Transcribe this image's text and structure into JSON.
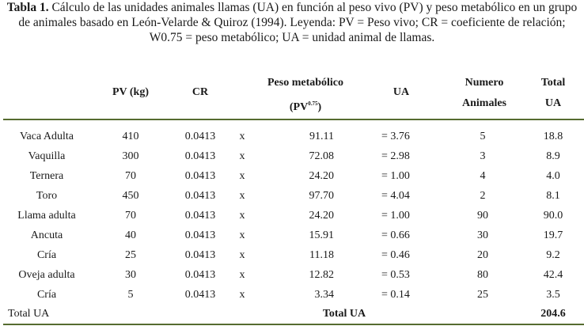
{
  "caption": {
    "label": "Tabla 1.",
    "text": " Cálculo de las unidades animales llamas (UA) en función al peso vivo (PV) y peso metabólico en un grupo de animales basado en León-Velarde & Quiroz (1994). Leyenda: PV = Peso vivo; CR = coeficiente de relación; W0.75 = peso metabólico; UA = unidad animal de llamas."
  },
  "headers": {
    "pv": "PV (kg)",
    "cr": "CR",
    "pm_line1": "Peso metabólico",
    "pm_line2_base": "(PV",
    "pm_line2_exp": "0.75",
    "pm_line2_end": ")",
    "ua": "UA",
    "num_line1": "Numero",
    "num_line2": "Animales",
    "tot_line1": "Total",
    "tot_line2": "UA"
  },
  "rows": [
    {
      "name": "Vaca Adulta",
      "pv": "410",
      "cr": "0.0413",
      "x": "x",
      "pm": "91.11",
      "ua": "= 3.76",
      "num": "5",
      "tot": "18.8"
    },
    {
      "name": "Vaquilla",
      "pv": "300",
      "cr": "0.0413",
      "x": "x",
      "pm": "72.08",
      "ua": "= 2.98",
      "num": "3",
      "tot": "8.9"
    },
    {
      "name": "Ternera",
      "pv": "70",
      "cr": "0.0413",
      "x": "x",
      "pm": "24.20",
      "ua": "= 1.00",
      "num": "4",
      "tot": "4.0"
    },
    {
      "name": "Toro",
      "pv": "450",
      "cr": "0.0413",
      "x": "x",
      "pm": "97.70",
      "ua": "= 4.04",
      "num": "2",
      "tot": "8.1"
    },
    {
      "name": "Llama adulta",
      "pv": "70",
      "cr": "0.0413",
      "x": "x",
      "pm": "24.20",
      "ua": "= 1.00",
      "num": "90",
      "tot": "90.0"
    },
    {
      "name": "Ancuta",
      "pv": "40",
      "cr": "0.0413",
      "x": "x",
      "pm": "15.91",
      "ua": "= 0.66",
      "num": "30",
      "tot": "19.7"
    },
    {
      "name": "Cría",
      "pv": "25",
      "cr": "0.0413",
      "x": "x",
      "pm": "11.18",
      "ua": "= 0.46",
      "num": "20",
      "tot": "9.2"
    },
    {
      "name": "Oveja adulta",
      "pv": "30",
      "cr": "0.0413",
      "x": "x",
      "pm": "12.82",
      "ua": "= 0.53",
      "num": "80",
      "tot": "42.4"
    },
    {
      "name": "Cría",
      "pv": "5",
      "cr": "0.0413",
      "x": "x",
      "pm": "3.34",
      "ua": "= 0.14",
      "num": "25",
      "tot": "3.5"
    }
  ],
  "total": {
    "label": "Total UA",
    "mid_label": "Total UA",
    "value": "204.6"
  },
  "colors": {
    "rule": "#556b2f"
  }
}
